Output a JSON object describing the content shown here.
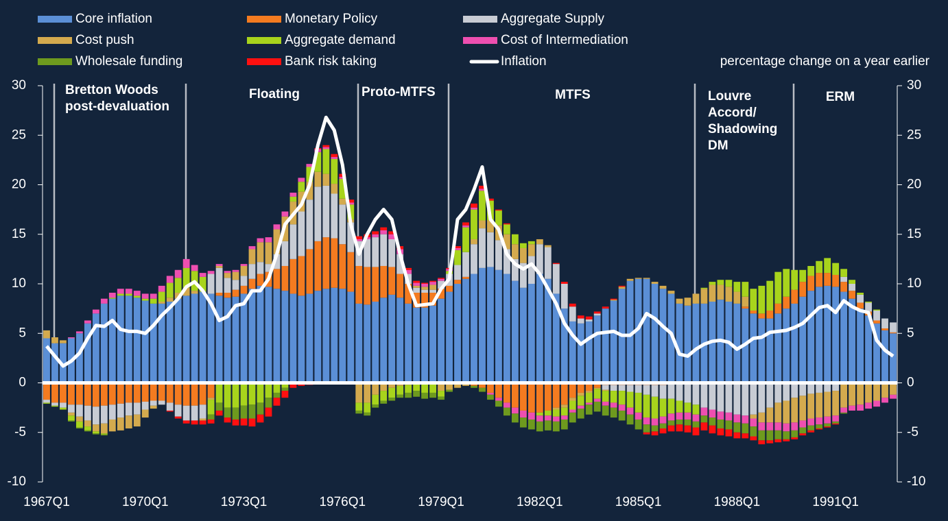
{
  "chart_data": {
    "type": "bar",
    "stacked": true,
    "y_label": "percentage change on a year earlier",
    "annotations": [
      [
        "Bretton Woods",
        "post-devaluation"
      ],
      [
        "Floating"
      ],
      [
        "Proto-MTFS"
      ],
      [
        "MTFS"
      ],
      [
        "Louvre",
        "Accord/",
        "Shadowing",
        "DM"
      ],
      [
        "ERM"
      ]
    ],
    "categories": [
      "1967Q1",
      null,
      null,
      null,
      null,
      null,
      null,
      null,
      null,
      null,
      null,
      null,
      "1970Q1",
      null,
      null,
      null,
      null,
      null,
      null,
      null,
      null,
      null,
      null,
      null,
      "1973Q1",
      null,
      null,
      null,
      null,
      null,
      null,
      null,
      null,
      null,
      null,
      null,
      "1976Q1",
      null,
      null,
      null,
      null,
      null,
      null,
      null,
      null,
      null,
      null,
      null,
      "1979Q1",
      null,
      null,
      null,
      null,
      null,
      null,
      null,
      null,
      null,
      null,
      null,
      "1982Q1",
      null,
      null,
      null,
      null,
      null,
      null,
      null,
      null,
      null,
      null,
      null,
      "1985Q1",
      null,
      null,
      null,
      null,
      null,
      null,
      null,
      null,
      null,
      null,
      null,
      "1988Q1",
      null,
      null,
      null,
      null,
      null,
      null,
      null,
      null,
      null,
      null,
      null,
      "1991Q1",
      null,
      null,
      null,
      null,
      null,
      null,
      null
    ],
    "ylim": [
      -10,
      30
    ],
    "yticks": [
      -10,
      -5,
      0,
      5,
      10,
      15,
      20,
      25,
      30
    ],
    "y2lim": [
      -10,
      30
    ],
    "y2ticks": [
      -10,
      -5,
      0,
      5,
      10,
      15,
      20,
      25,
      30
    ],
    "series": [
      {
        "name": "Core inflation",
        "color": "#5b8fd6",
        "values": [
          4.5,
          4,
          4,
          4.5,
          5,
          6,
          7,
          8,
          8.5,
          8.8,
          8.8,
          8.6,
          8.3,
          8,
          8,
          8.2,
          8.5,
          8.8,
          9,
          9.2,
          9,
          8.8,
          8.6,
          8.7,
          9,
          9.5,
          9.8,
          9.7,
          9.5,
          9.3,
          9,
          8.8,
          9,
          9.3,
          9.5,
          9.6,
          9.5,
          9.2,
          8,
          7.9,
          8.2,
          8.6,
          8.9,
          8.6,
          8,
          7.6,
          7.6,
          7.8,
          8.5,
          9.2,
          10,
          10.5,
          11,
          11.6,
          11.7,
          11.4,
          11,
          10.3,
          9.6,
          10,
          11,
          10.5,
          9,
          7.5,
          6.2,
          6,
          6.2,
          6.8,
          7.5,
          8.3,
          9.5,
          10.3,
          10.5,
          10.5,
          10,
          9.5,
          9,
          8,
          7.8,
          8,
          8,
          8.2,
          8.4,
          8.2,
          8,
          7.5,
          7,
          6.5,
          6.5,
          7,
          7.5,
          8,
          8.7,
          9.3,
          9.7,
          9.8,
          9.7,
          9.2,
          8.5,
          7.5,
          6.8,
          6,
          5.3,
          5
        ]
      },
      {
        "name": "Monetary Policy",
        "color": "#f47b20",
        "values": [
          -1.7,
          -2,
          -2,
          -2.2,
          -2.2,
          -2.3,
          -2.4,
          -2.3,
          -2.2,
          -2.1,
          -2,
          -2,
          -1.9,
          -1.8,
          -1.8,
          -2,
          -2.2,
          -2.3,
          -2.3,
          -2.2,
          -1.5,
          0.3,
          0.5,
          0.7,
          0.8,
          1,
          1.2,
          1.5,
          2,
          2.5,
          3.5,
          4,
          4.5,
          5,
          5.2,
          5,
          4.5,
          4,
          3.8,
          3.8,
          3.5,
          3.2,
          2.8,
          2.4,
          2,
          1.5,
          1.5,
          1.3,
          1,
          0.6,
          0.4,
          0.2,
          -0.3,
          -0.5,
          -1,
          -1.5,
          -2,
          -2.5,
          -2.8,
          -3,
          -3,
          -2.8,
          -2.5,
          -2.2,
          -1.5,
          -1,
          -0.8,
          -0.5,
          -0.2,
          -0.2,
          -0.2,
          -0.2,
          -0.2,
          -0.2,
          -0.2,
          -0.2,
          -0.1,
          0,
          0,
          0,
          0,
          0,
          0,
          0,
          0,
          0.2,
          0.3,
          0.5,
          0.8,
          1,
          1.2,
          1.4,
          1.5,
          1.5,
          1.4,
          1.3,
          1.2,
          1,
          0.8,
          0.6,
          0.4,
          0.3,
          0.2,
          0.1
        ]
      },
      {
        "name": "Aggregate Supply",
        "color": "#c8ccd4",
        "values": [
          -0.3,
          -0.3,
          -0.5,
          -0.8,
          -1.2,
          -1.5,
          -1.8,
          -1.8,
          -1.5,
          -1.4,
          -1.3,
          -1.2,
          -0.8,
          -0.5,
          -0.4,
          -0.8,
          -1.2,
          -1.5,
          -1.5,
          -1.4,
          2,
          2.5,
          1.5,
          1,
          1,
          1.5,
          1.2,
          0.8,
          1.5,
          2.5,
          3.5,
          4.5,
          5,
          5.5,
          5.2,
          4.5,
          4,
          3,
          2.5,
          2.8,
          3,
          3.2,
          2.8,
          2,
          1,
          0.5,
          0.3,
          0.3,
          0.8,
          1.2,
          1.5,
          2.5,
          3,
          4,
          3.5,
          3,
          2.5,
          2.2,
          2.5,
          2.8,
          3,
          3.2,
          3,
          2.5,
          1.5,
          0.5,
          0.2,
          0.2,
          -0.5,
          -0.6,
          -0.6,
          -0.7,
          -0.8,
          -1,
          -1.2,
          -1.4,
          -1.5,
          -1.8,
          -2,
          -2.2,
          -2.5,
          -2.7,
          -2.9,
          -3,
          -3.2,
          -3.3,
          -3.2,
          -3,
          -2.5,
          -2,
          -1.8,
          -1.5,
          -1.3,
          -1.1,
          -1,
          -0.9,
          -0.8,
          0.5,
          0.7,
          0.8,
          0.9,
          1,
          1,
          1
        ]
      },
      {
        "name": "Cost push",
        "color": "#d4aa4e",
        "values": [
          0.8,
          0.6,
          0.3,
          -0.3,
          -0.5,
          -0.6,
          -0.7,
          -1,
          -1.2,
          -1.3,
          -1.3,
          -1.2,
          -0.8,
          -0.3,
          0.2,
          0.4,
          0.6,
          0.8,
          0.3,
          -0.2,
          -0.2,
          0.2,
          0.5,
          0.8,
          1,
          1.5,
          2,
          2.2,
          2.5,
          2.5,
          2.3,
          2,
          1.8,
          1.5,
          1.2,
          1,
          0.6,
          0.3,
          -2,
          -2,
          -1.2,
          -0.8,
          -0.5,
          -0.3,
          -0.2,
          0.2,
          0.3,
          0.5,
          -0.8,
          -0.7,
          -0.5,
          -0.3,
          0.5,
          0.8,
          1.2,
          1.5,
          1.5,
          1.5,
          1.5,
          1.2,
          0.5,
          0.2,
          -0.2,
          -0.3,
          -0.3,
          -0.3,
          -0.2,
          -0.1,
          -0.1,
          0.1,
          0.2,
          0.2,
          0.1,
          0.1,
          0.2,
          0.3,
          0.3,
          0.5,
          0.8,
          1,
          1.5,
          1.7,
          1.5,
          1.5,
          1.2,
          1,
          -0.4,
          -1,
          -1.5,
          -2,
          -2.3,
          -2.5,
          -2.5,
          -2.5,
          -2.5,
          -2.5,
          -2.5,
          -2.5,
          -2.3,
          -2.2,
          -2,
          -1.8,
          -1.5,
          -1.2
        ]
      },
      {
        "name": "Aggregate demand",
        "color": "#a8d41c",
        "values": [
          -0.1,
          -0.1,
          -0.2,
          -0.5,
          -0.6,
          -0.4,
          -0.2,
          -0.1,
          0.1,
          0.2,
          0.2,
          0.2,
          0.2,
          0.5,
          1,
          1.5,
          1.5,
          2,
          2,
          1.5,
          -1.5,
          -2,
          -2.5,
          -2.5,
          -2.3,
          -2.2,
          -2,
          -1.5,
          -1,
          -0.5,
          0.5,
          1,
          1.5,
          2,
          2.5,
          2.5,
          2,
          1.5,
          -0.8,
          -1,
          -1,
          -1,
          -1,
          -0.9,
          -0.8,
          -0.8,
          -1,
          -1,
          -0.6,
          0.3,
          1.5,
          2.5,
          3,
          3,
          2,
          1.5,
          1,
          1,
          0.5,
          0.3,
          -0.3,
          -0.5,
          -0.7,
          -0.8,
          -0.9,
          -1,
          -1,
          -1,
          -1.1,
          -1.2,
          -1.4,
          -1.6,
          -2,
          -2.3,
          -2.2,
          -1.8,
          -1.5,
          -1.2,
          -1,
          -1,
          0.1,
          0.3,
          0.5,
          0.7,
          1,
          1.5,
          2.2,
          2.8,
          3,
          3.2,
          2.8,
          2,
          1.2,
          1,
          1.2,
          1.5,
          1.2,
          0.8,
          0.4,
          0.2,
          0.1,
          0.1,
          0,
          0
        ]
      },
      {
        "name": "Cost of Intermediation",
        "color": "#ee4fb0",
        "values": [
          0,
          0,
          0,
          0.1,
          0.2,
          0.3,
          0.4,
          0.5,
          0.5,
          0.5,
          0.5,
          0.5,
          0.5,
          0.5,
          0.6,
          0.7,
          0.8,
          0.9,
          0.6,
          0.4,
          0.3,
          0.2,
          0.2,
          0.2,
          0.2,
          0.3,
          0.4,
          0.5,
          0.5,
          0.5,
          0.4,
          0.4,
          0.3,
          0.3,
          0.2,
          0.2,
          0.2,
          0.2,
          0.2,
          0.2,
          0.3,
          0.4,
          0.5,
          0.5,
          0.4,
          0.3,
          0.3,
          0.3,
          0.2,
          0.2,
          0.2,
          0.2,
          0.2,
          0.2,
          -0.2,
          -0.3,
          -0.5,
          -0.6,
          -0.7,
          -0.7,
          -0.6,
          -0.5,
          -0.5,
          -0.4,
          -0.3,
          -0.3,
          -0.2,
          -0.3,
          -0.4,
          -0.5,
          -0.6,
          -0.7,
          -0.7,
          -0.7,
          -0.7,
          -0.7,
          -0.7,
          -0.7,
          -0.7,
          -0.7,
          -0.8,
          -0.8,
          -0.8,
          -0.8,
          -0.8,
          -0.8,
          -0.8,
          -0.8,
          -0.8,
          -0.8,
          -0.8,
          -0.8,
          -0.7,
          -0.7,
          -0.7,
          -0.7,
          -0.6,
          -0.5,
          -0.5,
          -0.6,
          -0.6,
          -0.6,
          -0.5,
          -0.4
        ]
      },
      {
        "name": "Wholesale funding",
        "color": "#6e9a1e",
        "values": [
          0,
          0,
          0,
          -0.1,
          -0.1,
          -0.1,
          -0.1,
          -0.1,
          0,
          0,
          0,
          0,
          0,
          0,
          0,
          0,
          0,
          0,
          0,
          0,
          -0.5,
          -0.8,
          -1,
          -1.2,
          -1.3,
          -1.4,
          -1.2,
          -1,
          -0.5,
          -0.3,
          0,
          0,
          0,
          0,
          0,
          0,
          0,
          0,
          -0.3,
          -0.3,
          -0.3,
          -0.3,
          -0.3,
          -0.3,
          -0.5,
          -0.6,
          -0.6,
          -0.5,
          -0.3,
          -0.2,
          0,
          0,
          -0.2,
          -0.4,
          -0.5,
          -0.6,
          -0.8,
          -0.9,
          -1,
          -1,
          -1,
          -1,
          -1,
          -1,
          -1,
          -1,
          -1,
          -1,
          -1,
          -1,
          -1,
          -1,
          -1,
          -0.8,
          -0.6,
          -0.5,
          -0.5,
          -0.5,
          -0.6,
          -0.6,
          -0.7,
          -0.8,
          -0.9,
          -0.9,
          -1,
          -1,
          -1,
          -1,
          -1,
          -0.9,
          -0.8,
          -0.7,
          -0.6,
          -0.5,
          -0.4,
          -0.3,
          -0.2,
          -0.1,
          0,
          0,
          0,
          0,
          0,
          0
        ]
      },
      {
        "name": "Bank risk taking",
        "color": "#ff1010",
        "values": [
          0,
          0,
          0,
          0,
          0,
          0,
          0,
          0,
          0,
          0,
          0,
          0,
          0,
          0,
          0,
          -0.1,
          -0.2,
          -0.3,
          -0.4,
          -0.4,
          -0.4,
          -0.5,
          -0.5,
          -0.6,
          -0.7,
          -0.8,
          -0.8,
          -0.9,
          -0.8,
          -0.7,
          -0.5,
          -0.3,
          -0.2,
          0.1,
          0.2,
          0.3,
          0.3,
          0.3,
          0.3,
          0.3,
          0.3,
          0.3,
          0.3,
          0.3,
          0.2,
          0.2,
          0.1,
          0.1,
          0.1,
          0.1,
          0.2,
          0.3,
          0.4,
          0.3,
          0.2,
          0.1,
          0.1,
          0,
          0,
          0,
          0,
          0,
          0.1,
          0.2,
          0.3,
          0.3,
          0.3,
          0.2,
          0.2,
          0.1,
          0.1,
          0,
          0,
          -0.2,
          -0.4,
          -0.5,
          -0.6,
          -0.7,
          -0.7,
          -0.8,
          -0.8,
          -0.8,
          -0.7,
          -0.7,
          -0.6,
          -0.5,
          -0.4,
          -0.4,
          -0.3,
          -0.3,
          -0.2,
          -0.2,
          -0.2,
          -0.2,
          -0.1,
          -0.1,
          -0.1,
          0,
          0,
          0,
          0,
          0,
          0,
          0
        ]
      },
      {
        "name": "Inflation",
        "color": "#ffffff",
        "type": "line",
        "values": [
          3.7,
          2.7,
          1.7,
          2.2,
          3,
          4.5,
          5.8,
          5.7,
          6.3,
          5.4,
          5.2,
          5.2,
          5,
          5.8,
          6.8,
          7.6,
          8.5,
          9.7,
          10.2,
          9.3,
          8,
          6.3,
          6.7,
          7.8,
          8,
          9.3,
          9.3,
          10.5,
          13,
          16,
          17,
          18,
          20,
          24,
          26.8,
          25.5,
          22,
          16,
          13,
          15,
          16.5,
          17.5,
          16.5,
          13,
          10,
          7.8,
          7.9,
          8,
          9.5,
          10.5,
          16.5,
          17.5,
          19.5,
          21.8,
          16.5,
          15.5,
          13,
          12,
          11.5,
          12,
          11,
          9.5,
          8,
          6,
          4.8,
          3.9,
          4.5,
          5,
          5.1,
          5.2,
          4.8,
          4.8,
          5.5,
          7,
          6.5,
          5.7,
          5,
          2.9,
          2.7,
          3.4,
          3.9,
          4.2,
          4.3,
          4.1,
          3.4,
          3.9,
          4.5,
          4.6,
          5.1,
          5.2,
          5.3,
          5.6,
          6,
          6.8,
          7.6,
          7.8,
          7.1,
          8.3,
          7.7,
          7.3,
          7.1,
          4.3,
          3.3,
          2.7
        ]
      }
    ]
  }
}
